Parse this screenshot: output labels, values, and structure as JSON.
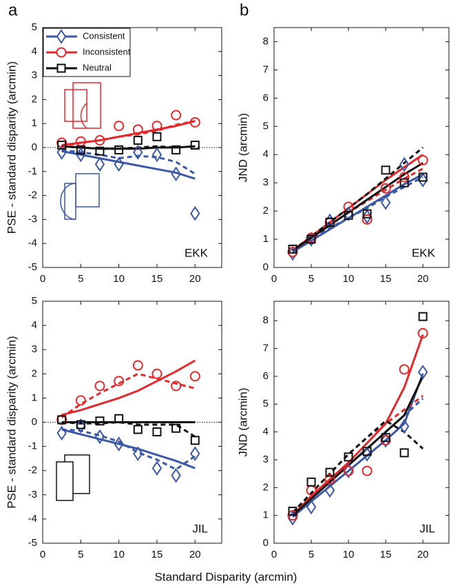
{
  "xlabel": "Standard Disparity (arcmin)",
  "chart_data": [
    {
      "type": "line",
      "panel_label": "a",
      "subject": "EKK",
      "ylabel": "PSE - standard disparity (arcmin)",
      "xlim": [
        0,
        23.5
      ],
      "ylim": [
        -5,
        5
      ],
      "xticks": [
        0,
        5,
        10,
        15,
        20
      ],
      "yticks": [
        -5,
        -4,
        -3,
        -2,
        -1,
        0,
        1,
        2,
        3,
        4,
        5
      ],
      "zero_line": true,
      "legend": true,
      "x": [
        2.5,
        5,
        7.5,
        10,
        12.5,
        15,
        17.5,
        20
      ],
      "series": [
        {
          "name": "Consistent",
          "color": "#3a57a8",
          "marker": "diamond",
          "values": [
            -0.2,
            -0.3,
            -0.7,
            -0.7,
            -0.2,
            -0.3,
            -1.1,
            -2.75
          ],
          "fit_solid": [
            -0.15,
            -0.3,
            -0.45,
            -0.6,
            -0.75,
            -0.9,
            -1.05,
            -1.3
          ],
          "fit_dashed": [
            -0.1,
            -0.2,
            -0.3,
            -0.45,
            -0.35,
            -0.4,
            -0.6,
            -1.1
          ]
        },
        {
          "name": "Inconsistent",
          "color": "#e8272a",
          "marker": "circle",
          "values": [
            0.2,
            0.25,
            0.3,
            0.9,
            0.75,
            0.9,
            1.35,
            1.05
          ],
          "fit_solid": [
            0.1,
            0.2,
            0.3,
            0.45,
            0.6,
            0.75,
            0.9,
            1.1
          ],
          "fit_dashed": [
            0.05,
            0.2,
            0.3,
            0.45,
            0.55,
            0.7,
            0.95,
            1.1
          ]
        },
        {
          "name": "Neutral",
          "color": "#111111",
          "marker": "square",
          "values": [
            0.1,
            -0.1,
            -0.15,
            -0.1,
            0.3,
            0.45,
            -0.1,
            0.1
          ],
          "fit_solid": [
            0.05,
            0,
            -0.05,
            -0.05,
            -0.05,
            0,
            0,
            0.05
          ],
          "fit_dashed": [
            0.05,
            0,
            -0.05,
            -0.05,
            0,
            0.05,
            0,
            0.05
          ]
        }
      ]
    },
    {
      "type": "line",
      "panel_label": "b",
      "subject": "EKK",
      "ylabel": "JND (arcmin)",
      "xlim": [
        0,
        23.5
      ],
      "ylim": [
        0,
        8.5
      ],
      "xticks": [
        0,
        5,
        10,
        15,
        20
      ],
      "yticks": [
        0,
        1,
        2,
        3,
        4,
        5,
        6,
        7,
        8
      ],
      "zero_line": false,
      "legend": false,
      "x": [
        2.5,
        5,
        7.5,
        10,
        12.5,
        15,
        17.5,
        20
      ],
      "series": [
        {
          "color": "#3a57a8",
          "marker": "diamond",
          "values": [
            0.5,
            1.0,
            1.65,
            1.9,
            1.8,
            2.3,
            3.65,
            3.1
          ],
          "fit_solid": [
            0.55,
            0.95,
            1.35,
            1.75,
            2.15,
            2.55,
            2.95,
            3.3
          ],
          "fit_dashed": [
            0.6,
            1.0,
            1.4,
            1.75,
            2.1,
            2.5,
            2.85,
            3.2
          ]
        },
        {
          "color": "#e8272a",
          "marker": "circle",
          "values": [
            0.55,
            1.05,
            1.6,
            2.15,
            1.7,
            2.8,
            3.2,
            3.8
          ],
          "fit_solid": [
            0.6,
            1.1,
            1.6,
            2.1,
            2.6,
            3.1,
            3.55,
            4.0
          ],
          "fit_dashed": [
            0.6,
            1.05,
            1.5,
            1.95,
            2.35,
            2.75,
            3.15,
            3.5
          ]
        },
        {
          "color": "#111111",
          "marker": "square",
          "values": [
            0.65,
            1.0,
            1.6,
            1.85,
            1.9,
            3.45,
            3.0,
            3.2
          ],
          "fit_solid": [
            0.6,
            1.05,
            1.5,
            1.95,
            2.4,
            2.85,
            3.3,
            3.7
          ],
          "fit_dashed": [
            0.6,
            1.1,
            1.6,
            2.1,
            2.6,
            3.15,
            3.7,
            4.25
          ]
        }
      ]
    },
    {
      "type": "line",
      "subject": "JIL",
      "ylabel": "PSE - standard disparity (arcmin)",
      "xlim": [
        0,
        23.5
      ],
      "ylim": [
        -5,
        5
      ],
      "xticks": [
        0,
        5,
        10,
        15,
        20
      ],
      "yticks": [
        -5,
        -4,
        -3,
        -2,
        -1,
        0,
        1,
        2,
        3,
        4,
        5
      ],
      "zero_line": true,
      "legend": false,
      "x": [
        2.5,
        5,
        7.5,
        10,
        12.5,
        15,
        17.5,
        20
      ],
      "series": [
        {
          "color": "#3a57a8",
          "marker": "diamond",
          "values": [
            -0.45,
            -0.15,
            -0.6,
            -0.9,
            -1.3,
            -1.9,
            -2.2,
            -1.3
          ],
          "fit_solid": [
            -0.3,
            -0.5,
            -0.7,
            -0.9,
            -1.1,
            -1.35,
            -1.6,
            -1.9
          ],
          "fit_dashed": [
            -0.3,
            -0.35,
            -0.55,
            -0.8,
            -1.25,
            -1.55,
            -1.95,
            -1.4
          ]
        },
        {
          "color": "#e8272a",
          "marker": "circle",
          "values": [
            0.1,
            0.9,
            1.5,
            1.7,
            2.35,
            2.0,
            1.5,
            1.9
          ],
          "fit_solid": [
            0.3,
            0.5,
            0.75,
            1.0,
            1.3,
            1.7,
            2.1,
            2.55
          ],
          "fit_dashed": [
            0.2,
            0.75,
            1.2,
            1.6,
            2.0,
            1.8,
            1.6,
            1.4
          ]
        },
        {
          "color": "#111111",
          "marker": "square",
          "values": [
            0.1,
            -0.1,
            0.05,
            0.15,
            -0.3,
            -0.4,
            -0.25,
            -0.75
          ],
          "fit_solid": [
            0,
            0,
            0,
            0,
            0,
            0,
            0,
            0
          ],
          "fit_dashed": [
            0,
            -0.05,
            -0.05,
            0,
            -0.1,
            -0.1,
            -0.1,
            -0.6
          ]
        }
      ]
    },
    {
      "type": "line",
      "subject": "JIL",
      "ylabel": "JND (arcmin)",
      "xlim": [
        0,
        23.5
      ],
      "ylim": [
        0,
        8.7
      ],
      "xticks": [
        0,
        5,
        10,
        15,
        20
      ],
      "yticks": [
        0,
        1,
        2,
        3,
        4,
        5,
        6,
        7,
        8
      ],
      "zero_line": false,
      "legend": false,
      "x": [
        2.5,
        5,
        7.5,
        10,
        12.5,
        15,
        17.5,
        20
      ],
      "series": [
        {
          "color": "#3a57a8",
          "marker": "diamond",
          "values": [
            0.9,
            1.3,
            1.9,
            2.6,
            3.2,
            3.7,
            4.2,
            6.15
          ],
          "fit_solid": [
            0.95,
            1.5,
            2.05,
            2.6,
            3.15,
            3.7,
            4.3,
            6.1
          ],
          "fit_dashed": [
            1.0,
            1.6,
            2.2,
            2.8,
            3.4,
            4.0,
            4.6,
            5.2
          ]
        },
        {
          "color": "#e8272a",
          "marker": "circle",
          "values": [
            1.0,
            1.9,
            2.3,
            2.6,
            2.6,
            3.7,
            6.25,
            7.55
          ],
          "fit_solid": [
            1.0,
            1.7,
            2.3,
            2.9,
            3.6,
            4.3,
            5.6,
            7.5
          ],
          "fit_dashed": [
            1.1,
            1.8,
            2.5,
            3.2,
            3.8,
            4.3,
            4.8,
            5.3
          ]
        },
        {
          "color": "#111111",
          "marker": "square",
          "values": [
            1.15,
            2.2,
            2.55,
            3.1,
            3.3,
            3.8,
            3.25,
            8.15
          ],
          "fit_solid": [
            1.0,
            1.6,
            2.2,
            2.8,
            3.4,
            4.0,
            4.6,
            6.0
          ],
          "fit_dashed": [
            1.1,
            1.8,
            2.5,
            3.2,
            3.8,
            4.4,
            4.0,
            3.4
          ]
        }
      ]
    }
  ]
}
